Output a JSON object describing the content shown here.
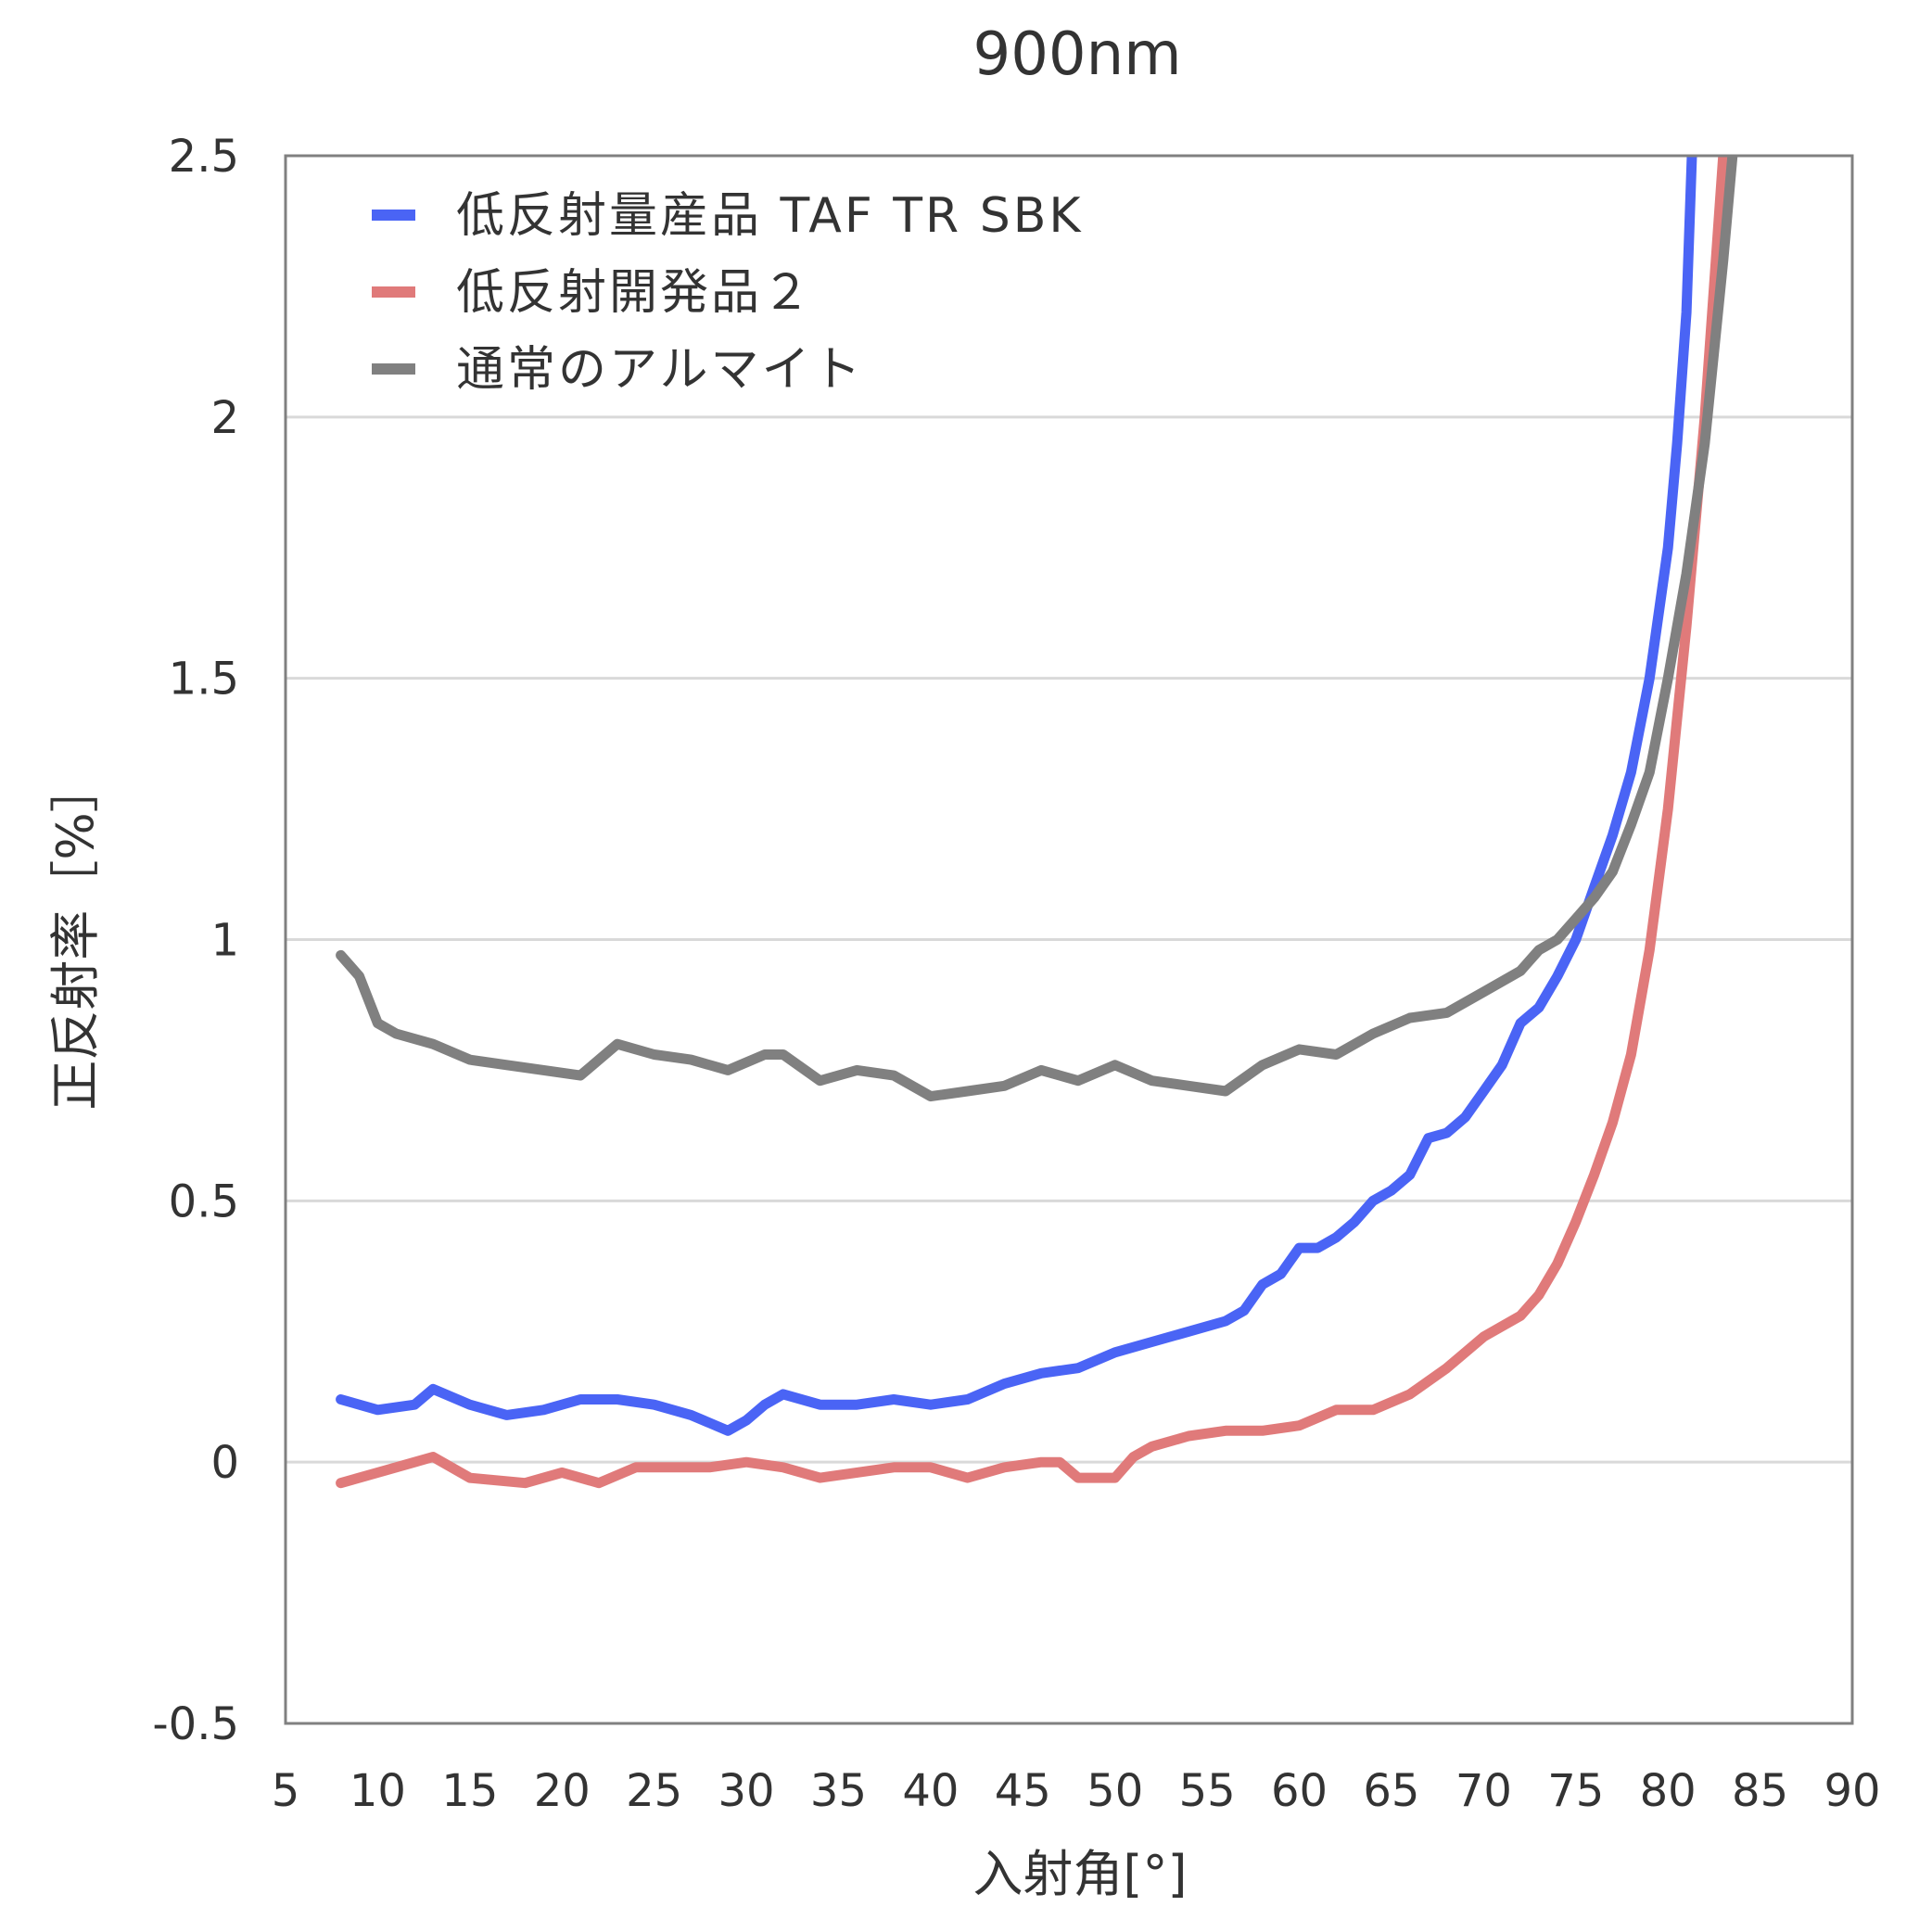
{
  "chart_data": {
    "type": "line",
    "title": "900nm",
    "xlabel": "入射角[°]",
    "ylabel": "正反射率［%］",
    "xlim": [
      5,
      90
    ],
    "ylim": [
      -0.5,
      2.5
    ],
    "x_ticks": [
      5,
      10,
      15,
      20,
      25,
      30,
      35,
      40,
      45,
      50,
      55,
      60,
      65,
      70,
      75,
      80,
      85,
      90
    ],
    "y_ticks": [
      -0.5,
      0,
      0.5,
      1,
      1.5,
      2,
      2.5
    ],
    "y_tick_labels": [
      "-0.5",
      "0",
      "0.5",
      "1",
      "1.5",
      "2",
      "2.5"
    ],
    "grid": "horizontal",
    "legend_position": "top-left",
    "series": [
      {
        "name": "低反射量産品 TAF TR SBK",
        "color": "#4a64f5",
        "x": [
          8,
          10,
          12,
          13,
          15,
          17,
          19,
          21,
          23,
          25,
          27,
          29,
          30,
          31,
          32,
          34,
          36,
          38,
          40,
          42,
          44,
          46,
          48,
          50,
          52,
          54,
          56,
          57,
          58,
          59,
          60,
          61,
          62,
          63,
          64,
          65,
          66,
          67,
          68,
          69,
          70,
          71,
          72,
          73,
          74,
          75,
          76,
          77,
          78,
          79,
          80,
          80.5,
          81,
          81.3
        ],
        "y": [
          0.12,
          0.1,
          0.11,
          0.14,
          0.11,
          0.09,
          0.1,
          0.12,
          0.12,
          0.11,
          0.09,
          0.06,
          0.08,
          0.11,
          0.13,
          0.11,
          0.11,
          0.12,
          0.11,
          0.12,
          0.15,
          0.17,
          0.18,
          0.21,
          0.23,
          0.25,
          0.27,
          0.29,
          0.34,
          0.36,
          0.41,
          0.41,
          0.43,
          0.46,
          0.5,
          0.52,
          0.55,
          0.62,
          0.63,
          0.66,
          0.71,
          0.76,
          0.84,
          0.87,
          0.93,
          1.0,
          1.1,
          1.2,
          1.32,
          1.5,
          1.75,
          1.95,
          2.2,
          2.5
        ]
      },
      {
        "name": "低反射開発品２",
        "color": "#e07a7a",
        "x": [
          8,
          10,
          12,
          13,
          15,
          18,
          20,
          22,
          24,
          26,
          28,
          30,
          32,
          34,
          36,
          38,
          40,
          42,
          44,
          46,
          47,
          48,
          49,
          50,
          51,
          52,
          54,
          56,
          58,
          60,
          62,
          64,
          66,
          68,
          70,
          72,
          73,
          74,
          75,
          76,
          77,
          78,
          79,
          80,
          81,
          82,
          82.5,
          83
        ],
        "y": [
          -0.04,
          -0.02,
          0.0,
          0.01,
          -0.03,
          -0.04,
          -0.02,
          -0.04,
          -0.01,
          -0.01,
          -0.01,
          0.0,
          -0.01,
          -0.03,
          -0.02,
          -0.01,
          -0.01,
          -0.03,
          -0.01,
          0.0,
          0.0,
          -0.03,
          -0.03,
          -0.03,
          0.01,
          0.03,
          0.05,
          0.06,
          0.06,
          0.07,
          0.1,
          0.1,
          0.13,
          0.18,
          0.24,
          0.28,
          0.32,
          0.38,
          0.46,
          0.55,
          0.65,
          0.78,
          0.98,
          1.25,
          1.6,
          2.0,
          2.25,
          2.5
        ]
      },
      {
        "name": "通常のアルマイト",
        "color": "#808080",
        "x": [
          8,
          9,
          10,
          11,
          13,
          15,
          17,
          19,
          21,
          23,
          25,
          27,
          29,
          31,
          32,
          34,
          36,
          38,
          40,
          42,
          44,
          46,
          48,
          50,
          52,
          54,
          56,
          58,
          60,
          62,
          64,
          66,
          68,
          70,
          72,
          73,
          74,
          75,
          76,
          77,
          78,
          79,
          80,
          81,
          82,
          83,
          83.5
        ],
        "y": [
          0.97,
          0.93,
          0.84,
          0.82,
          0.8,
          0.77,
          0.76,
          0.75,
          0.74,
          0.8,
          0.78,
          0.77,
          0.75,
          0.78,
          0.78,
          0.73,
          0.75,
          0.74,
          0.7,
          0.71,
          0.72,
          0.75,
          0.73,
          0.76,
          0.73,
          0.72,
          0.71,
          0.76,
          0.79,
          0.78,
          0.82,
          0.85,
          0.86,
          0.9,
          0.94,
          0.98,
          1.0,
          1.04,
          1.08,
          1.13,
          1.22,
          1.32,
          1.5,
          1.7,
          1.95,
          2.3,
          2.5
        ]
      }
    ]
  }
}
